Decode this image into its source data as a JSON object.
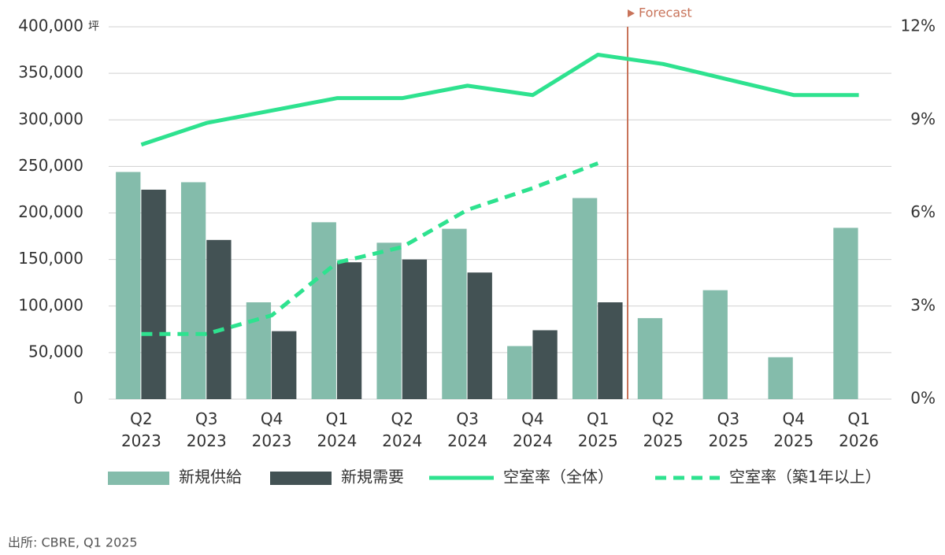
{
  "chart_data": {
    "type": "bar",
    "y_unit": "坪",
    "forecast_label": "Forecast",
    "source": "出所: CBRE, Q1 2025",
    "categories": [
      "Q2 2023",
      "Q3 2023",
      "Q4 2023",
      "Q1 2024",
      "Q2 2024",
      "Q3 2024",
      "Q4 2024",
      "Q1 2025",
      "Q2 2025",
      "Q3 2025",
      "Q4 2025",
      "Q1 2026"
    ],
    "series": [
      {
        "name": "新規供給",
        "type": "bar",
        "color": "#84bcab",
        "values": [
          244000,
          233000,
          104000,
          190000,
          168000,
          183000,
          57000,
          216000,
          87000,
          117000,
          45000,
          184000
        ]
      },
      {
        "name": "新規需要",
        "type": "bar",
        "color": "#435254",
        "values": [
          225000,
          171000,
          73000,
          147000,
          150000,
          136000,
          74000,
          104000,
          null,
          null,
          null,
          null
        ]
      },
      {
        "name": "空室率（全体）",
        "type": "line",
        "axis": "y2",
        "color": "#2ee28f",
        "style": "solid",
        "values": [
          8.2,
          8.9,
          9.3,
          9.7,
          9.7,
          10.1,
          9.8,
          11.1,
          10.8,
          10.3,
          9.8,
          9.8
        ]
      },
      {
        "name": "空室率（築1年以上）",
        "type": "line",
        "axis": "y2",
        "color": "#2ee28f",
        "style": "dashed",
        "values": [
          2.1,
          2.1,
          2.7,
          4.4,
          4.9,
          6.1,
          6.8,
          7.6,
          null,
          null,
          null,
          null
        ]
      }
    ],
    "ylim": [
      0,
      400000
    ],
    "yticks": [
      0,
      {
        "value": 50000,
        "label": "50,000"
      },
      {
        "value": 100000,
        "label": "100,000"
      },
      {
        "value": 150000,
        "label": "150,000"
      },
      {
        "value": 200000,
        "label": "200,000"
      },
      {
        "value": 250000,
        "label": "250,000"
      },
      {
        "value": 300000,
        "label": "300,000"
      },
      {
        "value": 350000,
        "label": "350,000"
      },
      {
        "value": 400000,
        "label": "400,000"
      }
    ],
    "y2lim": [
      0,
      12
    ],
    "y2ticks": [
      {
        "value": 0,
        "label": "0%"
      },
      {
        "value": 3,
        "label": "3%"
      },
      {
        "value": 6,
        "label": "6%"
      },
      {
        "value": 9,
        "label": "9%"
      },
      {
        "value": 12,
        "label": "12%"
      }
    ],
    "grid": true
  }
}
